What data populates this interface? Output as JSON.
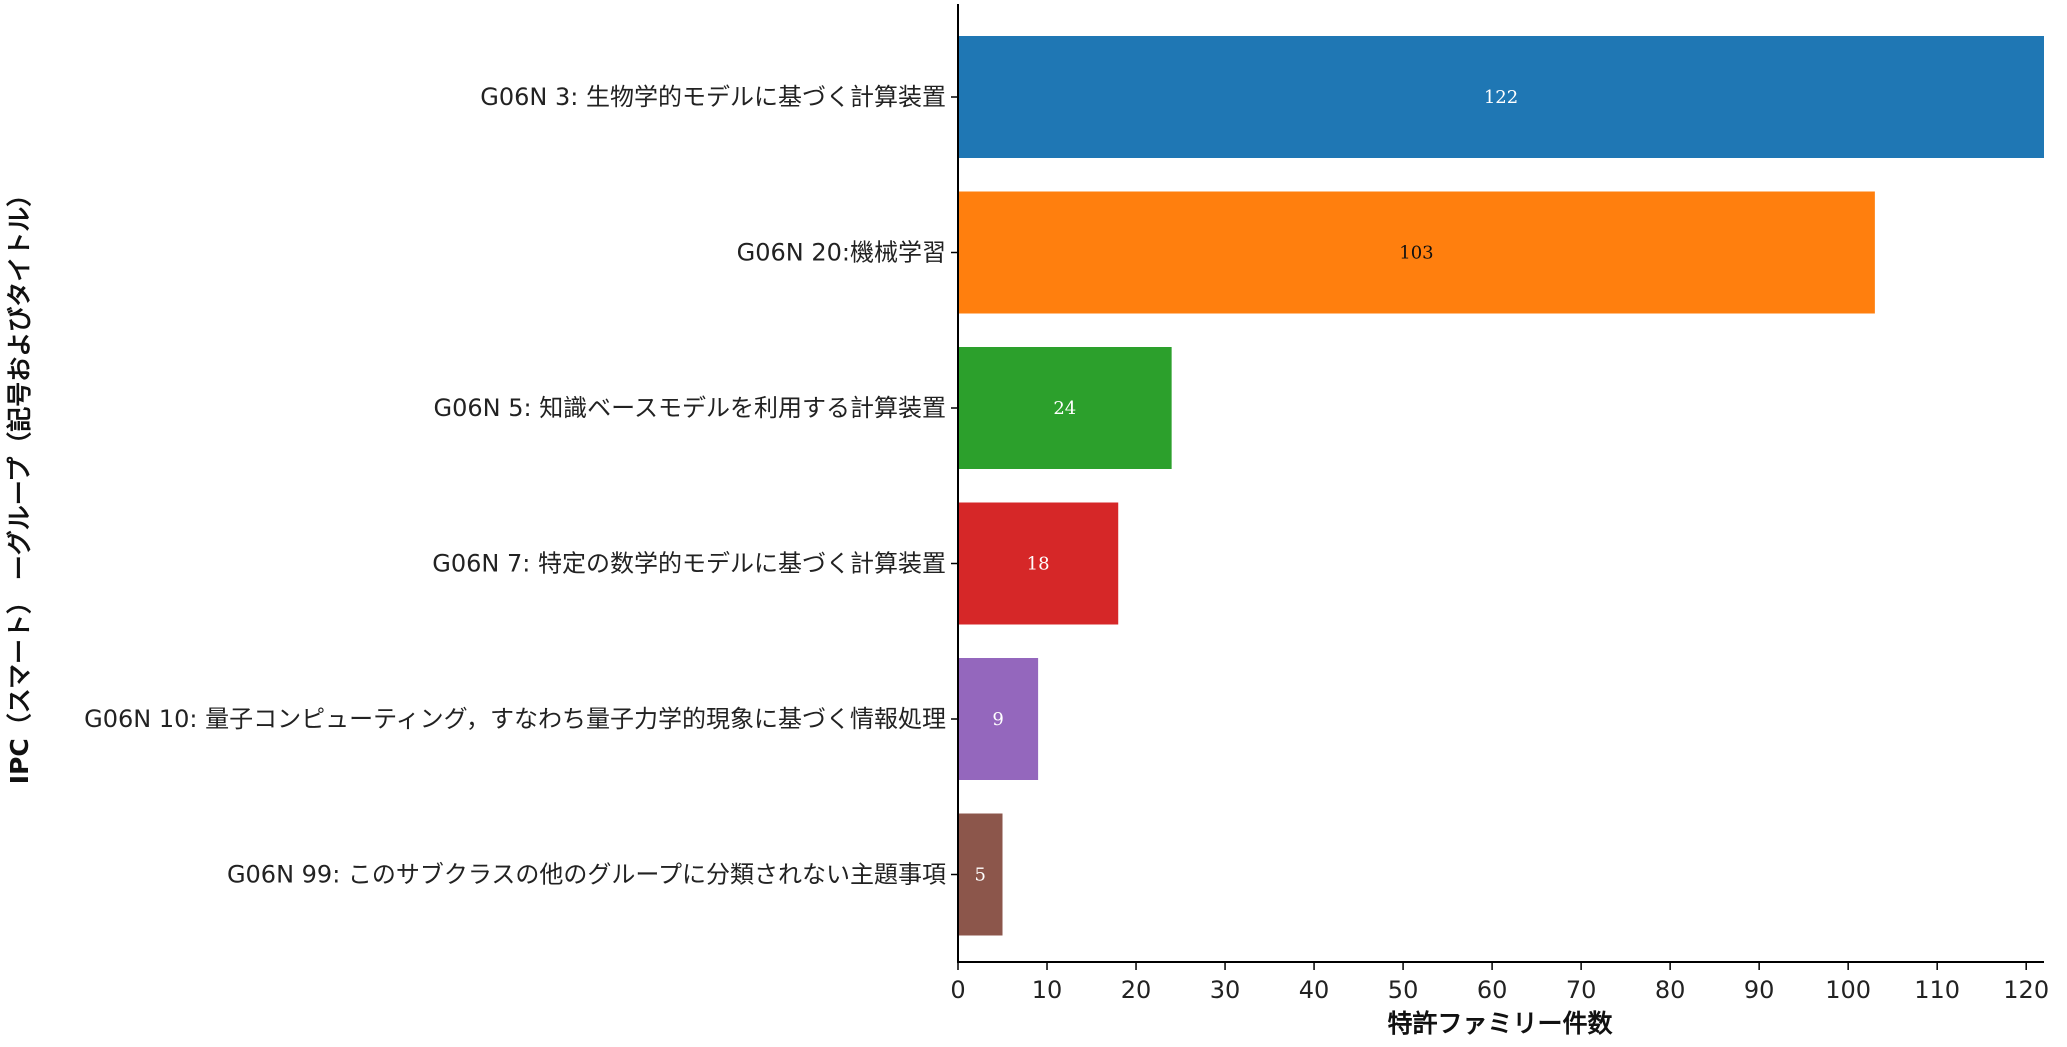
{
  "chart_data": {
    "type": "bar",
    "orientation": "horizontal",
    "title": "",
    "xlabel": "特許ファミリー件数",
    "ylabel": "IPC（スマート） ーグループ（記号およびタイトル）",
    "categories": [
      "G06N 3: 生物学的モデルに基づく計算装置",
      "G06N 20:機械学習",
      "G06N 5: 知識ベースモデルを利用する計算装置",
      "G06N 7: 特定の数学的モデルに基づく計算装置",
      "G06N 10: 量子コンピューティング，すなわち量子力学的現象に基づく情報処理",
      "G06N 99: このサブクラスの他のグループに分類されない主題事項"
    ],
    "values": [
      122,
      103,
      24,
      18,
      9,
      5
    ],
    "data_labels": [
      "122",
      "103",
      "24",
      "18",
      "9",
      "5"
    ],
    "colors": [
      "#1f77b4",
      "#ff7f0e",
      "#2ca02c",
      "#d62728",
      "#9467bd",
      "#8c564b"
    ],
    "label_colors": [
      "#ffffff",
      "#111111",
      "#ffffff",
      "#ffffff",
      "#ffffff",
      "#ffffff"
    ],
    "xlim": [
      0,
      122
    ],
    "xticks": [
      0,
      10,
      20,
      30,
      40,
      50,
      60,
      70,
      80,
      90,
      100,
      110,
      120
    ],
    "grid": false,
    "legend": "none"
  }
}
